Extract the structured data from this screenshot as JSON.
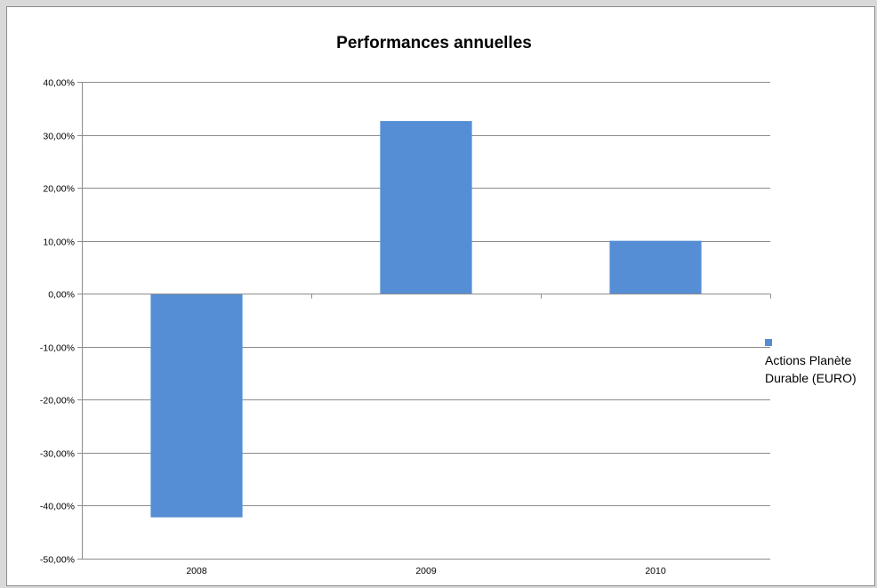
{
  "chart_data": {
    "type": "bar",
    "title": "Performances annuelles",
    "xlabel": "",
    "ylabel": "",
    "categories": [
      "2008",
      "2009",
      "2010"
    ],
    "series": [
      {
        "name": "Actions Planète Durable (EURO)",
        "values": [
          -42.2,
          32.6,
          10.0
        ],
        "color": "#558ED5"
      }
    ],
    "ylim": [
      -50,
      40
    ],
    "y_ticks": [
      "-50,00%",
      "-40,00%",
      "-30,00%",
      "-20,00%",
      "-10,00%",
      "0,00%",
      "10,00%",
      "20,00%",
      "30,00%",
      "40,00%"
    ],
    "grid": true,
    "legend_position": "right"
  },
  "legend": {
    "line1": "Actions Planète",
    "line2": "Durable (EURO)"
  }
}
